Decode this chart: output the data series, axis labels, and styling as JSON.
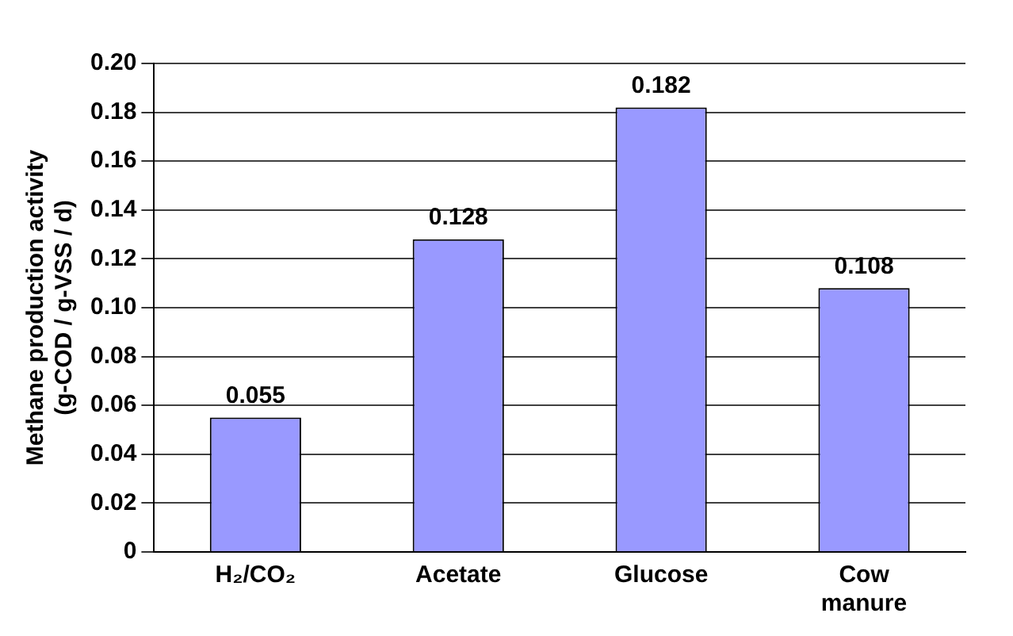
{
  "chart_data": {
    "type": "bar",
    "ylabel": "Methane production activity (g-COD / g-VSS / d)",
    "categories": [
      "H₂/CO₂",
      "Acetate",
      "Glucose",
      "Cow manure"
    ],
    "values": [
      0.055,
      0.128,
      0.182,
      0.108
    ],
    "color": "#9999ff",
    "ylim": [
      0,
      0.2
    ],
    "yticks": [
      0,
      0.02,
      0.04,
      0.06,
      0.08,
      {
        "value": 0.1,
        "label": "0.10"
      },
      0.12,
      0.14,
      0.16,
      0.18,
      {
        "value": 0.2,
        "label": "0.20"
      }
    ],
    "grid": "y",
    "data_labels": true
  }
}
